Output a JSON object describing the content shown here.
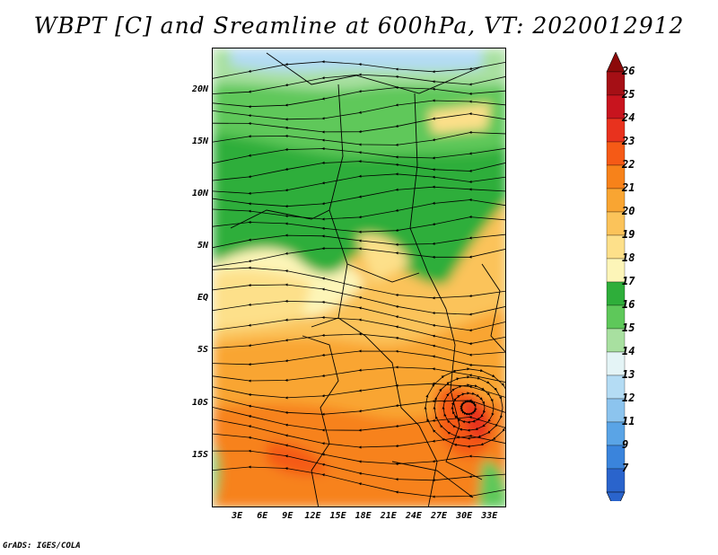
{
  "title": "WBPT [C] and Sreamline at 600hPa, VT: 2020012912",
  "footer": "GrADS: IGES/COLA",
  "map": {
    "lon_range": [
      0,
      35
    ],
    "lat_range": [
      -20,
      24
    ],
    "lat_ticks": [
      {
        "lat": 20,
        "label": "20N"
      },
      {
        "lat": 15,
        "label": "15N"
      },
      {
        "lat": 10,
        "label": "10N"
      },
      {
        "lat": 5,
        "label": "5N"
      },
      {
        "lat": 0,
        "label": "EQ"
      },
      {
        "lat": -5,
        "label": "5S"
      },
      {
        "lat": -10,
        "label": "10S"
      },
      {
        "lat": -15,
        "label": "15S"
      }
    ],
    "lon_ticks": [
      {
        "lon": 3,
        "label": "3E"
      },
      {
        "lon": 6,
        "label": "6E"
      },
      {
        "lon": 9,
        "label": "9E"
      },
      {
        "lon": 12,
        "label": "12E"
      },
      {
        "lon": 15,
        "label": "15E"
      },
      {
        "lon": 18,
        "label": "18E"
      },
      {
        "lon": 21,
        "label": "21E"
      },
      {
        "lon": 24,
        "label": "24E"
      },
      {
        "lon": 27,
        "label": "27E"
      },
      {
        "lon": 30,
        "label": "30E"
      },
      {
        "lon": 33,
        "label": "33E"
      }
    ]
  },
  "colorbar": {
    "levels": [
      {
        "label": "26",
        "color": "#a50f15"
      },
      {
        "label": "25",
        "color": "#c8141e"
      },
      {
        "label": "24",
        "color": "#e8321e"
      },
      {
        "label": "23",
        "color": "#f55a16"
      },
      {
        "label": "22",
        "color": "#f7821a"
      },
      {
        "label": "21",
        "color": "#f9a532"
      },
      {
        "label": "20",
        "color": "#fbc35a"
      },
      {
        "label": "19",
        "color": "#fde08a"
      },
      {
        "label": "18",
        "color": "#fdf5b8"
      },
      {
        "label": "17",
        "color": "#2eae3a"
      },
      {
        "label": "16",
        "color": "#5ec85a"
      },
      {
        "label": "15",
        "color": "#a8e0a0"
      },
      {
        "label": "14",
        "color": "#e4f4f6"
      },
      {
        "label": "13",
        "color": "#b4dcf4"
      },
      {
        "label": "12",
        "color": "#8cc4ee"
      },
      {
        "label": "11",
        "color": "#5aa4e6"
      },
      {
        "label": "9",
        "color": "#3a84dc"
      },
      {
        "label": "7",
        "color": "#2a64cc"
      }
    ],
    "top_arrow_color": "#8c0a0a",
    "bottom_arrow_color": "#2a64cc"
  }
}
